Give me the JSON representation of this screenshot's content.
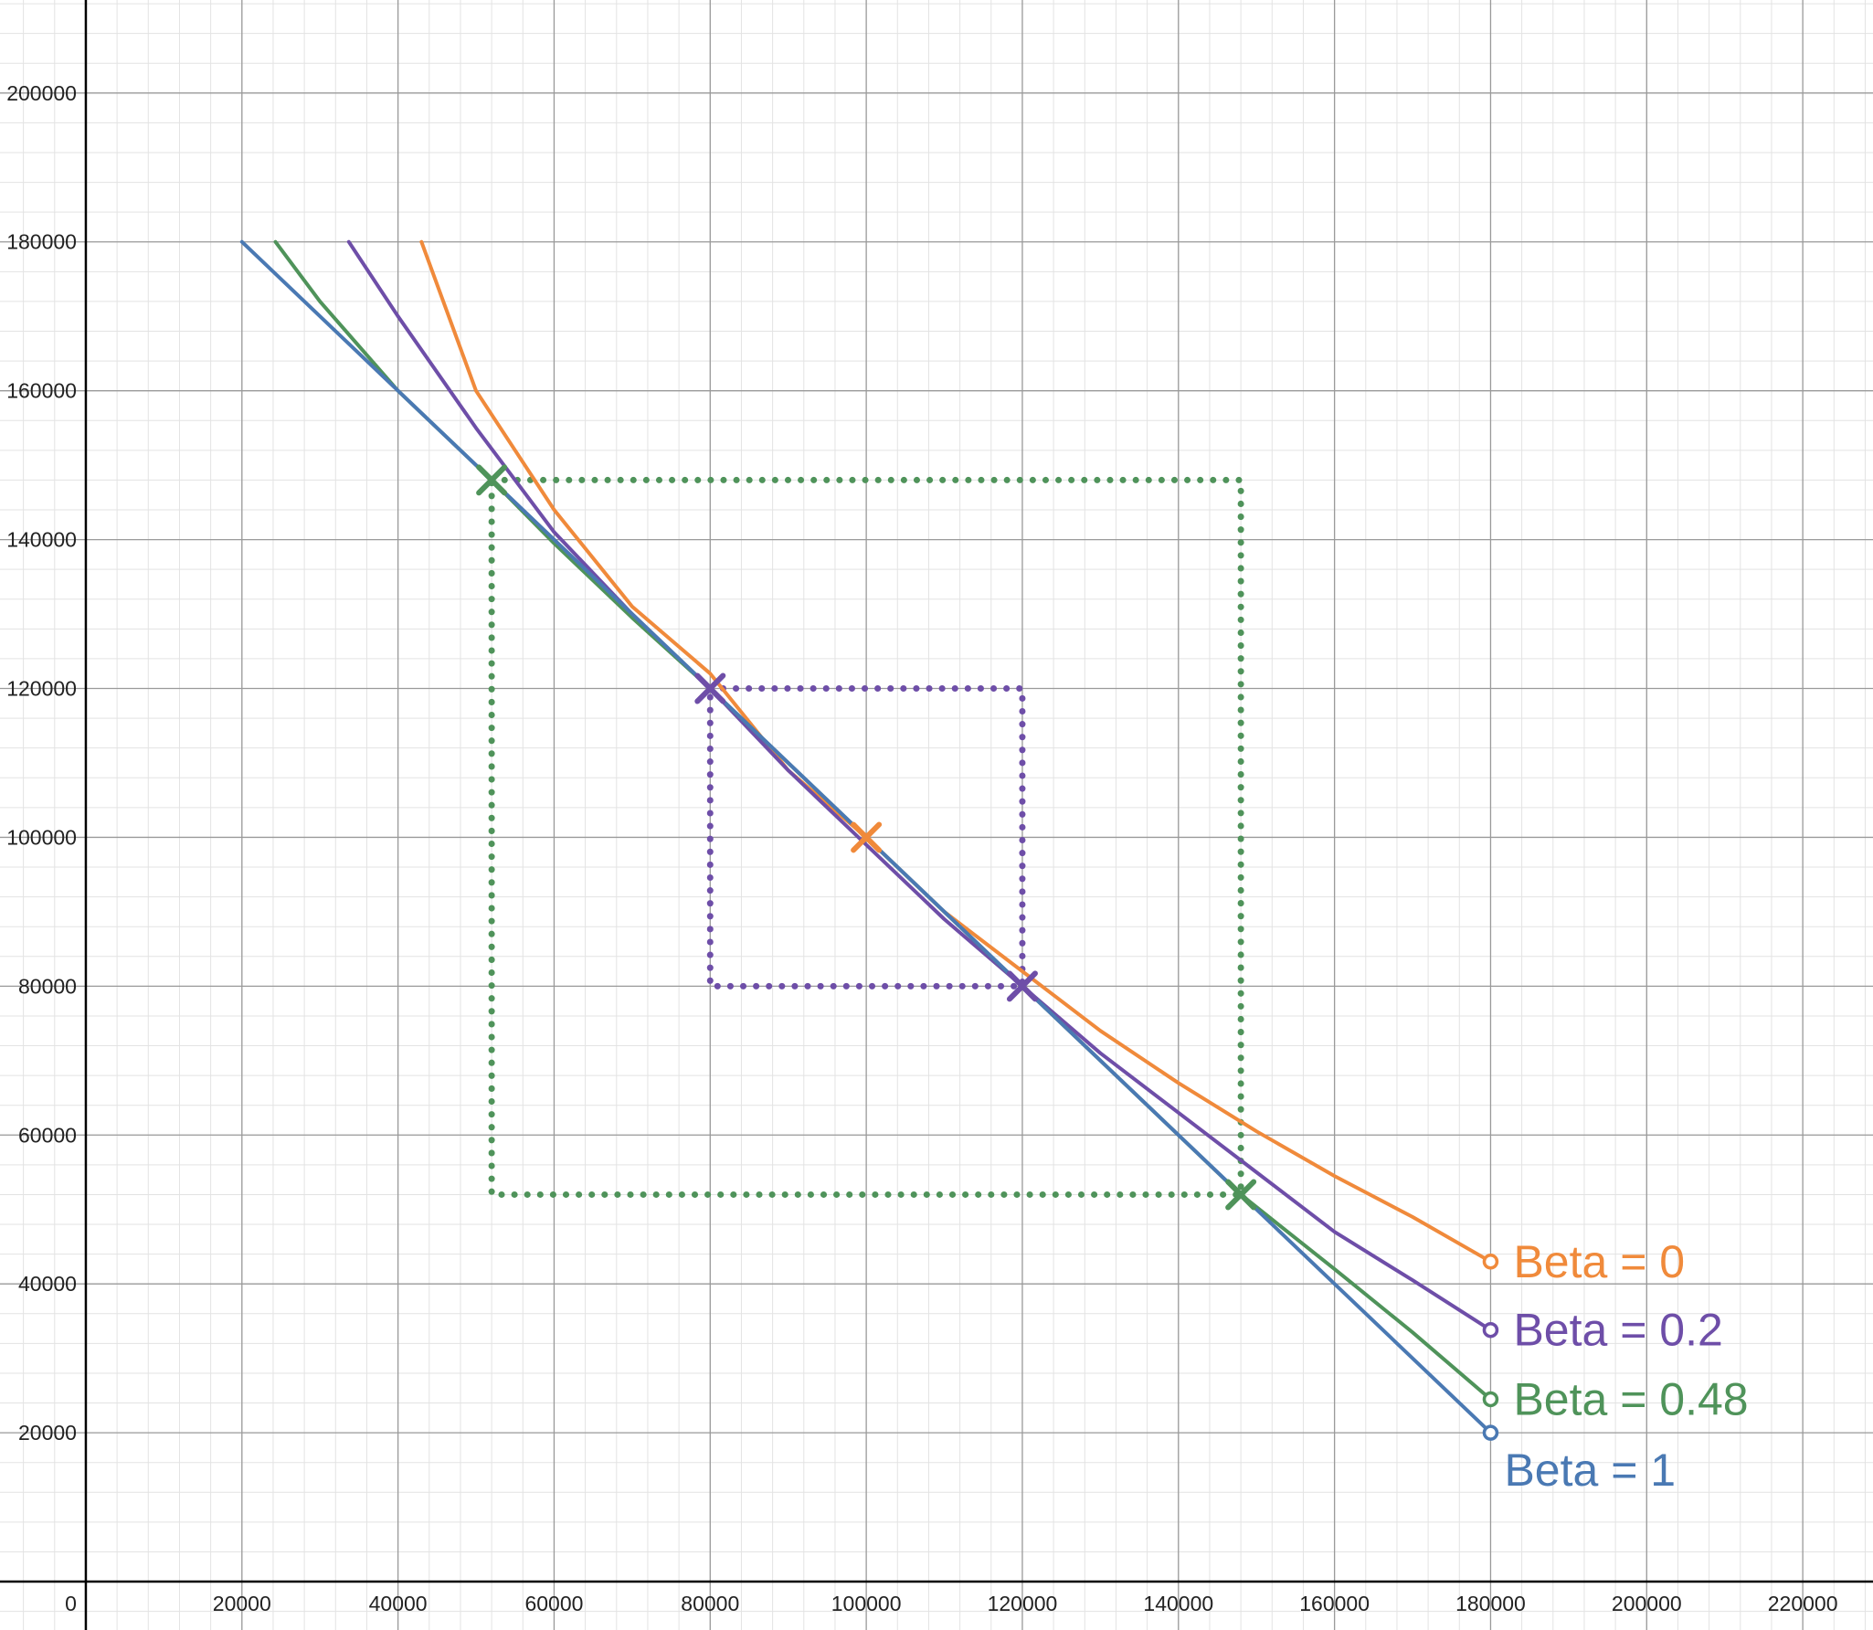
{
  "chart_data": {
    "type": "line",
    "title": "",
    "xlabel": "",
    "ylabel": "",
    "xlim": [
      -11000,
      229000
    ],
    "ylim": [
      -6500,
      212500
    ],
    "x_ticks": [
      20000,
      40000,
      60000,
      80000,
      100000,
      120000,
      140000,
      160000,
      180000,
      200000,
      220000
    ],
    "y_ticks": [
      20000,
      40000,
      60000,
      80000,
      100000,
      120000,
      140000,
      160000,
      180000,
      200000
    ],
    "origin_label": "0",
    "grid": true,
    "minor_grid_step": 4000,
    "series": [
      {
        "name": "Beta = 0",
        "color": "#f08a3b",
        "x": [
          43000,
          50000,
          60000,
          70000,
          80000,
          90000,
          100000,
          110000,
          120000,
          130000,
          140000,
          150000,
          160000,
          170000,
          180000
        ],
        "y": [
          180000,
          160000,
          144000,
          131000,
          122000,
          109000,
          100000,
          90000,
          82000,
          74000,
          67000,
          60500,
          54500,
          49000,
          43000
        ],
        "end_marker": "open-circle"
      },
      {
        "name": "Beta = 0.2",
        "color": "#6e4ea8",
        "x": [
          33700,
          40000,
          50000,
          60000,
          70000,
          80000,
          90000,
          100000,
          110000,
          120000,
          130000,
          140000,
          150000,
          160000,
          170000,
          180000
        ],
        "y": [
          180000,
          170000,
          155000,
          141000,
          130000,
          120000,
          109000,
          99000,
          89000,
          80000,
          71000,
          63000,
          55000,
          47000,
          40500,
          33800
        ],
        "end_marker": "open-circle"
      },
      {
        "name": "Beta = 0.48",
        "color": "#4f935a",
        "x": [
          24300,
          30000,
          40000,
          52000,
          60000,
          70000,
          80000,
          90000,
          100000,
          110000,
          120000,
          130000,
          140000,
          148000,
          160000,
          170000,
          180000
        ],
        "y": [
          180000,
          172000,
          160000,
          148000,
          139500,
          129500,
          120000,
          110000,
          100000,
          90000,
          80000,
          70000,
          60000,
          52000,
          42000,
          33500,
          24500
        ],
        "end_marker": "open-circle"
      },
      {
        "name": "Beta = 1",
        "color": "#4a79b3",
        "x": [
          20000,
          180000
        ],
        "y": [
          180000,
          20000
        ],
        "end_marker": "open-circle"
      }
    ],
    "points": [
      {
        "x": 100000,
        "y": 100000,
        "color": "#f08a3b",
        "marker": "x"
      },
      {
        "x": 80000,
        "y": 120000,
        "color": "#6e4ea8",
        "marker": "x"
      },
      {
        "x": 120000,
        "y": 80000,
        "color": "#6e4ea8",
        "marker": "x"
      },
      {
        "x": 52000,
        "y": 148000,
        "color": "#4f935a",
        "marker": "x"
      },
      {
        "x": 148000,
        "y": 52000,
        "color": "#4f935a",
        "marker": "x"
      }
    ],
    "dotted_boxes": [
      {
        "x1": 80000,
        "y1": 80000,
        "x2": 120000,
        "y2": 120000,
        "color": "#6e4ea8"
      },
      {
        "x1": 52000,
        "y1": 52000,
        "x2": 148000,
        "y2": 148000,
        "color": "#4f935a"
      }
    ]
  }
}
